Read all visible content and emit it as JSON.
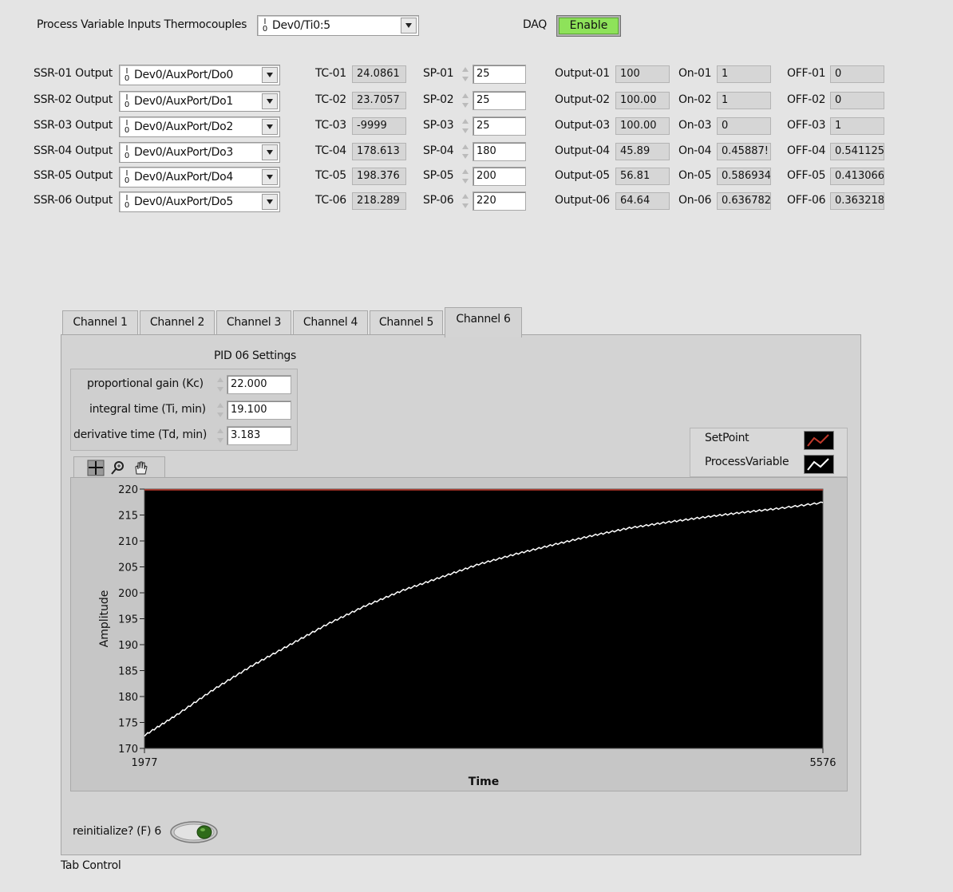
{
  "top": {
    "pv_label": "Process Variable Inputs Thermocouples",
    "pv_channel": "Dev0/Ti0:5",
    "daq_label": "DAQ",
    "daq_button": "Enable"
  },
  "ssr": [
    {
      "label": "SSR-01 Output",
      "line": "Dev0/AuxPort/Do0"
    },
    {
      "label": "SSR-02 Output",
      "line": "Dev0/AuxPort/Do1"
    },
    {
      "label": "SSR-03 Output",
      "line": "Dev0/AuxPort/Do2"
    },
    {
      "label": "SSR-04 Output",
      "line": "Dev0/AuxPort/Do3"
    },
    {
      "label": "SSR-05 Output",
      "line": "Dev0/AuxPort/Do4"
    },
    {
      "label": "SSR-06 Output",
      "line": "Dev0/AuxPort/Do5"
    }
  ],
  "tc": [
    {
      "label": "TC-01",
      "value": "24.0861"
    },
    {
      "label": "TC-02",
      "value": "23.7057"
    },
    {
      "label": "TC-03",
      "value": "-9999"
    },
    {
      "label": "TC-04",
      "value": "178.613"
    },
    {
      "label": "TC-05",
      "value": "198.376"
    },
    {
      "label": "TC-06",
      "value": "218.289"
    }
  ],
  "sp": [
    {
      "label": "SP-01",
      "value": "25"
    },
    {
      "label": "SP-02",
      "value": "25"
    },
    {
      "label": "SP-03",
      "value": "25"
    },
    {
      "label": "SP-04",
      "value": "180"
    },
    {
      "label": "SP-05",
      "value": "200"
    },
    {
      "label": "SP-06",
      "value": "220"
    }
  ],
  "output": [
    {
      "label": "Output-01",
      "value": "100"
    },
    {
      "label": "Output-02",
      "value": "100.00"
    },
    {
      "label": "Output-03",
      "value": "100.00"
    },
    {
      "label": "Output-04",
      "value": "45.89"
    },
    {
      "label": "Output-05",
      "value": "56.81"
    },
    {
      "label": "Output-06",
      "value": "64.64"
    }
  ],
  "on": [
    {
      "label": "On-01",
      "value": "1"
    },
    {
      "label": "On-02",
      "value": "1"
    },
    {
      "label": "On-03",
      "value": "0"
    },
    {
      "label": "On-04",
      "value": "0.45887!"
    },
    {
      "label": "On-05",
      "value": "0.586934"
    },
    {
      "label": "On-06",
      "value": "0.636782"
    }
  ],
  "off": [
    {
      "label": "OFF-01",
      "value": "0"
    },
    {
      "label": "OFF-02",
      "value": "0"
    },
    {
      "label": "OFF-03",
      "value": "1"
    },
    {
      "label": "OFF-04",
      "value": "0.541125"
    },
    {
      "label": "OFF-05",
      "value": "0.413066"
    },
    {
      "label": "OFF-06",
      "value": "0.363218"
    }
  ],
  "tabs": [
    "Channel 1",
    "Channel 2",
    "Channel 3",
    "Channel 4",
    "Channel 5",
    "Channel 6"
  ],
  "active_tab": "Channel 6",
  "pid": {
    "title": "PID 06 Settings",
    "kc_label": "proportional gain (Kc)",
    "kc_value": "22.000",
    "ti_label": "integral time (Ti, min)",
    "ti_value": "19.100",
    "td_label": "derivative time (Td, min)",
    "td_value": "3.183"
  },
  "legend": {
    "setpoint": "SetPoint",
    "process": "ProcessVariable",
    "setpoint_color": "#c0392b",
    "process_color": "#ffffff"
  },
  "palette_icons": [
    "cursor-move-icon",
    "zoom-icon",
    "pan-hand-icon"
  ],
  "bottom": {
    "reinit_label": "reinitialize? (F) 6",
    "tab_control_label": "Tab Control"
  },
  "chart_data": {
    "type": "line",
    "xlabel": "Time",
    "ylabel": "Amplitude",
    "xlim": [
      1977,
      5576
    ],
    "ylim": [
      170,
      220
    ],
    "y_ticks": [
      220,
      215,
      210,
      205,
      200,
      195,
      190,
      185,
      180,
      175,
      170
    ],
    "x_tick_labels": [
      "1977",
      "5576"
    ],
    "background": "#000000",
    "series": [
      {
        "name": "SetPoint",
        "color": "#c0392b",
        "x": [
          1977,
          5576
        ],
        "y": [
          220,
          220
        ]
      },
      {
        "name": "ProcessVariable",
        "color": "#ffffff",
        "x": [
          1977,
          2150,
          2350,
          2550,
          2750,
          2950,
          3150,
          3350,
          3550,
          3750,
          3950,
          4150,
          4350,
          4550,
          4750,
          4950,
          5150,
          5350,
          5576
        ],
        "y": [
          172.5,
          176.5,
          181.5,
          186.0,
          190.0,
          194.0,
          197.5,
          200.5,
          203.0,
          205.5,
          207.5,
          209.3,
          211.0,
          212.5,
          213.6,
          214.6,
          215.5,
          216.3,
          217.4
        ]
      }
    ]
  }
}
